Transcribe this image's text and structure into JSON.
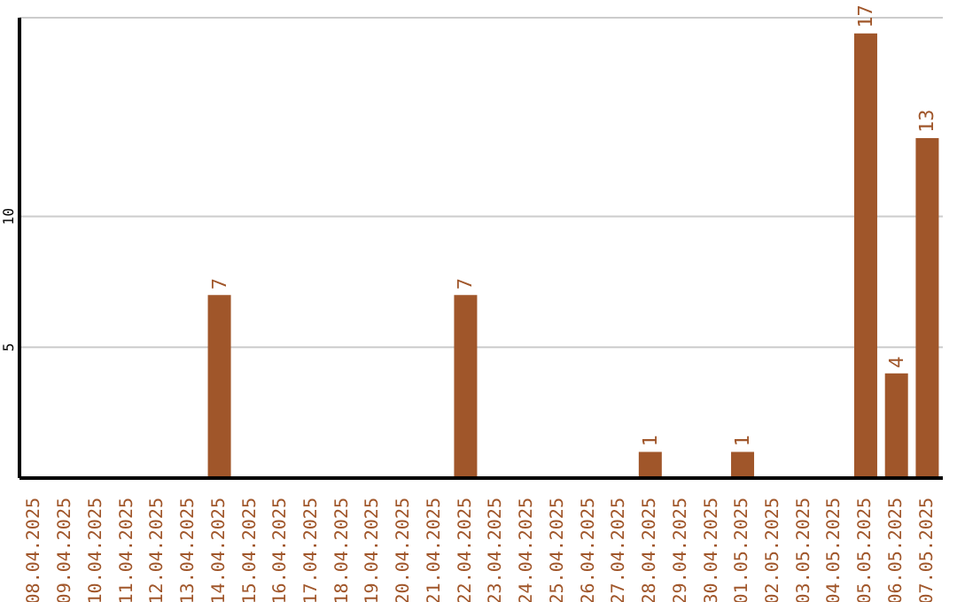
{
  "chart_data": {
    "type": "bar",
    "categories": [
      "08.04.2025",
      "09.04.2025",
      "10.04.2025",
      "11.04.2025",
      "12.04.2025",
      "13.04.2025",
      "14.04.2025",
      "15.04.2025",
      "16.04.2025",
      "17.04.2025",
      "18.04.2025",
      "19.04.2025",
      "20.04.2025",
      "21.04.2025",
      "22.04.2025",
      "23.04.2025",
      "24.04.2025",
      "25.04.2025",
      "26.04.2025",
      "27.04.2025",
      "28.04.2025",
      "29.04.2025",
      "30.04.2025",
      "01.05.2025",
      "02.05.2025",
      "03.05.2025",
      "04.05.2025",
      "05.05.2025",
      "06.05.2025",
      "07.05.2025"
    ],
    "values": [
      0,
      0,
      0,
      0,
      0,
      0,
      7,
      0,
      0,
      0,
      0,
      0,
      0,
      0,
      7,
      0,
      0,
      0,
      0,
      0,
      1,
      0,
      0,
      1,
      0,
      0,
      0,
      17,
      4,
      13
    ],
    "value_labels": [
      null,
      null,
      null,
      null,
      null,
      null,
      "7",
      null,
      null,
      null,
      null,
      null,
      null,
      null,
      "7",
      null,
      null,
      null,
      null,
      null,
      "1",
      null,
      null,
      "1",
      null,
      null,
      null,
      "17",
      "4",
      "13"
    ],
    "color": "#a0562a",
    "ylim": [
      0,
      17.6
    ],
    "yticks": [
      5,
      10
    ],
    "grid": "y"
  }
}
